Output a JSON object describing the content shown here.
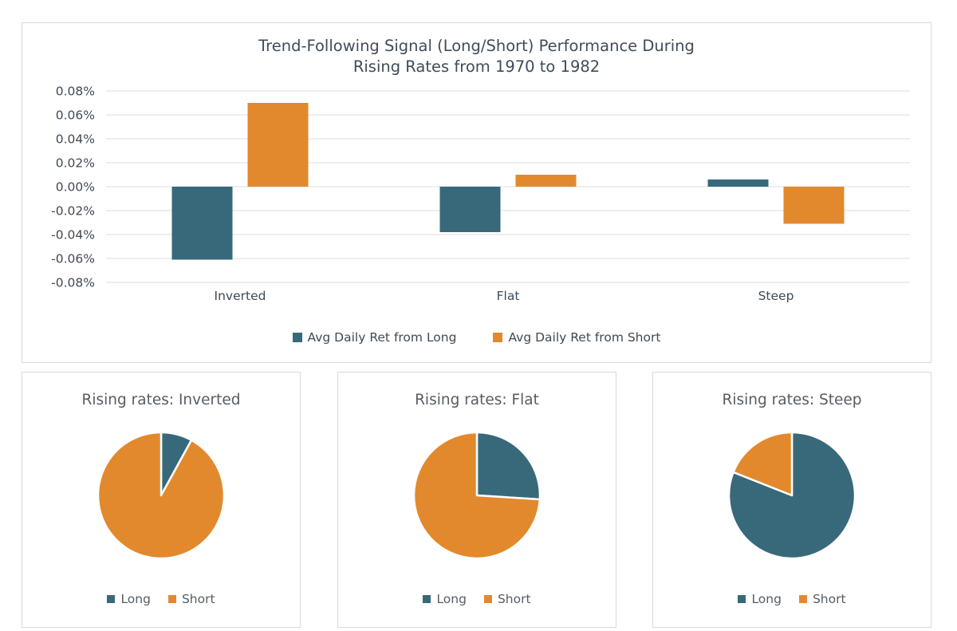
{
  "palette": {
    "long": "#38697B",
    "short": "#E2892E",
    "grid": "#e2e4e6",
    "panel_border": "#d8dadc",
    "title_text": "#404c59",
    "axis_text": "#3f4a54",
    "pie_text": "#565d63"
  },
  "chart_data": [
    {
      "type": "bar",
      "title": "Trend-Following Signal (Long/Short) Performance During Rising Rates from 1970 to 1982",
      "title_lines": [
        "Trend-Following Signal (Long/Short) Performance During",
        "Rising Rates from 1970 to 1982"
      ],
      "categories": [
        "Inverted",
        "Flat",
        "Steep"
      ],
      "series": [
        {
          "name": "Avg Daily Ret from Long",
          "color": "#38697B",
          "values_pct": [
            -0.061,
            -0.038,
            0.006
          ]
        },
        {
          "name": "Avg Daily Ret from Short",
          "color": "#E2892E",
          "values_pct": [
            0.07,
            0.01,
            -0.031
          ]
        }
      ],
      "ylim": [
        -0.08,
        0.08
      ],
      "ytick_step": 0.02,
      "yticks": [
        "0.08%",
        "0.06%",
        "0.04%",
        "0.02%",
        "0.00%",
        "-0.02%",
        "-0.04%",
        "-0.06%",
        "-0.08%"
      ],
      "grid": true,
      "legend_position": "bottom"
    },
    {
      "type": "pie",
      "title": "Rising rates: Inverted",
      "labels": [
        "Long",
        "Short"
      ],
      "values_pct": [
        8,
        92
      ],
      "colors": [
        "#38697B",
        "#E2892E"
      ],
      "start_angle_deg": 0,
      "direction": "clockwise",
      "legend_position": "bottom"
    },
    {
      "type": "pie",
      "title": "Rising rates: Flat",
      "labels": [
        "Long",
        "Short"
      ],
      "values_pct": [
        26,
        74
      ],
      "colors": [
        "#38697B",
        "#E2892E"
      ],
      "start_angle_deg": 0,
      "direction": "clockwise",
      "legend_position": "bottom"
    },
    {
      "type": "pie",
      "title": "Rising rates: Steep",
      "labels": [
        "Long",
        "Short"
      ],
      "values_pct": [
        81,
        19
      ],
      "colors": [
        "#38697B",
        "#E2892E"
      ],
      "start_angle_deg": 0,
      "direction": "clockwise",
      "legend_position": "bottom"
    }
  ]
}
